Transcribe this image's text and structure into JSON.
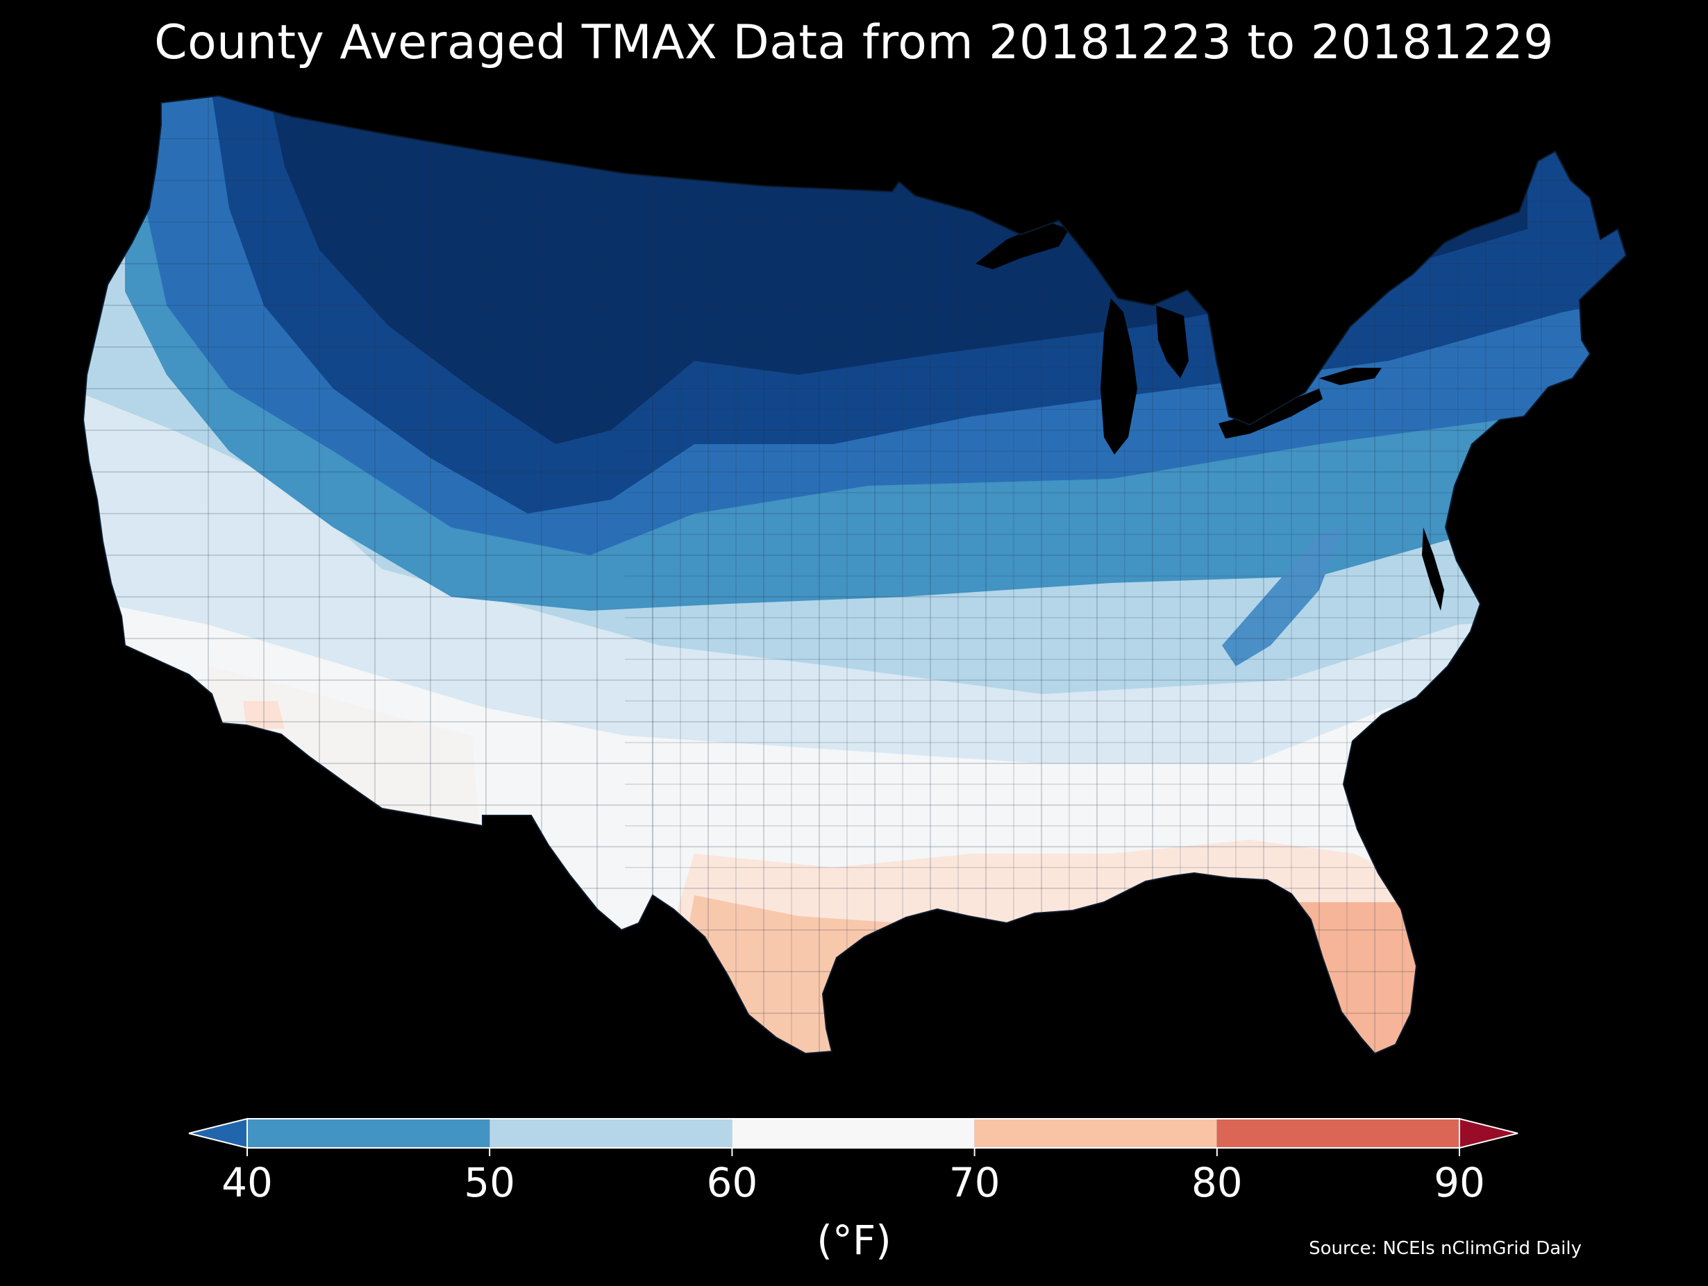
{
  "title": "County Averaged TMAX Data from 20181223 to 20181229",
  "source": "Source: NCEIs nClimGrid Daily",
  "map": {
    "type": "choropleth",
    "region": "Contiguous United States counties",
    "variable": "TMAX",
    "pattern": "coldest (below 40 °F) across the northern Rockies, northern Plains and upper Midwest into northern New England; 40-60 °F over the central states and Appalachians; 60-70 °F in southern California, southern Arizona and the Southeast; 70-80 °F in south Texas and Florida"
  },
  "colorbar": {
    "unit_label": "(°F)",
    "ticks": [
      "40",
      "50",
      "60",
      "70",
      "80",
      "90"
    ],
    "bins": [
      {
        "range": "<40",
        "color": "#2166ac"
      },
      {
        "range": "40-50",
        "color": "#4393c3"
      },
      {
        "range": "50-60",
        "color": "#b4d6e8"
      },
      {
        "range": "60-70",
        "color": "#f7f7f7"
      },
      {
        "range": "70-80",
        "color": "#f9c3a5"
      },
      {
        "range": "80-90",
        "color": "#dc6656"
      },
      {
        "range": ">90",
        "color": "#980c27"
      }
    ],
    "extend": "both"
  }
}
